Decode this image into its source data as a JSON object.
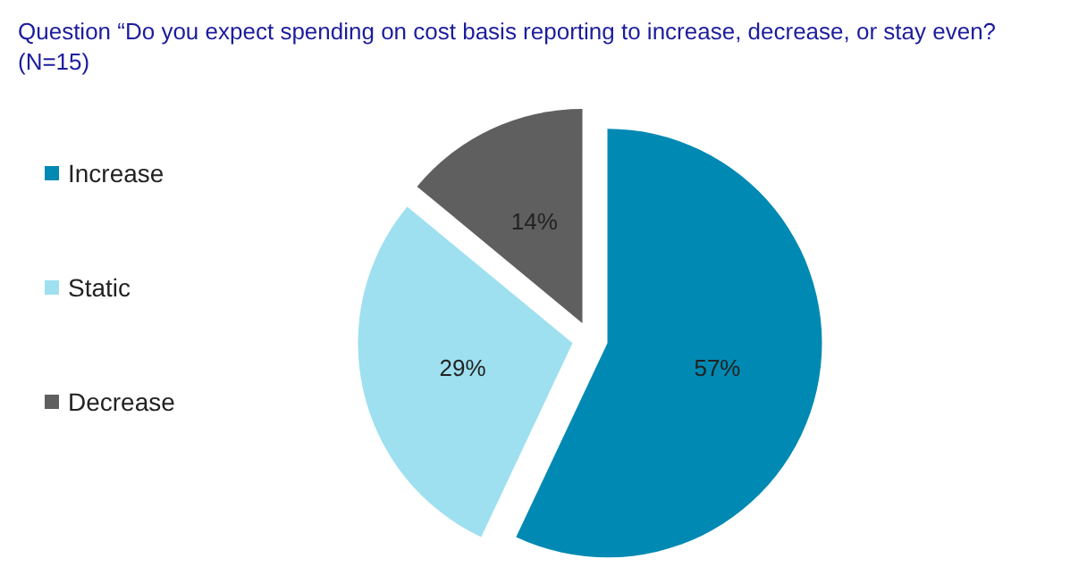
{
  "chart_data": {
    "type": "pie",
    "title": "Question “Do you expect spending on cost basis reporting to increase, decrease, or stay even? (N=15)",
    "categories": [
      "Increase",
      "Static",
      "Decrease"
    ],
    "values": [
      57,
      29,
      14
    ],
    "value_labels": [
      "57%",
      "29%",
      "14%"
    ],
    "colors": [
      "#0089b3",
      "#9ee0ef",
      "#5f5f5f"
    ],
    "legend": "left"
  }
}
